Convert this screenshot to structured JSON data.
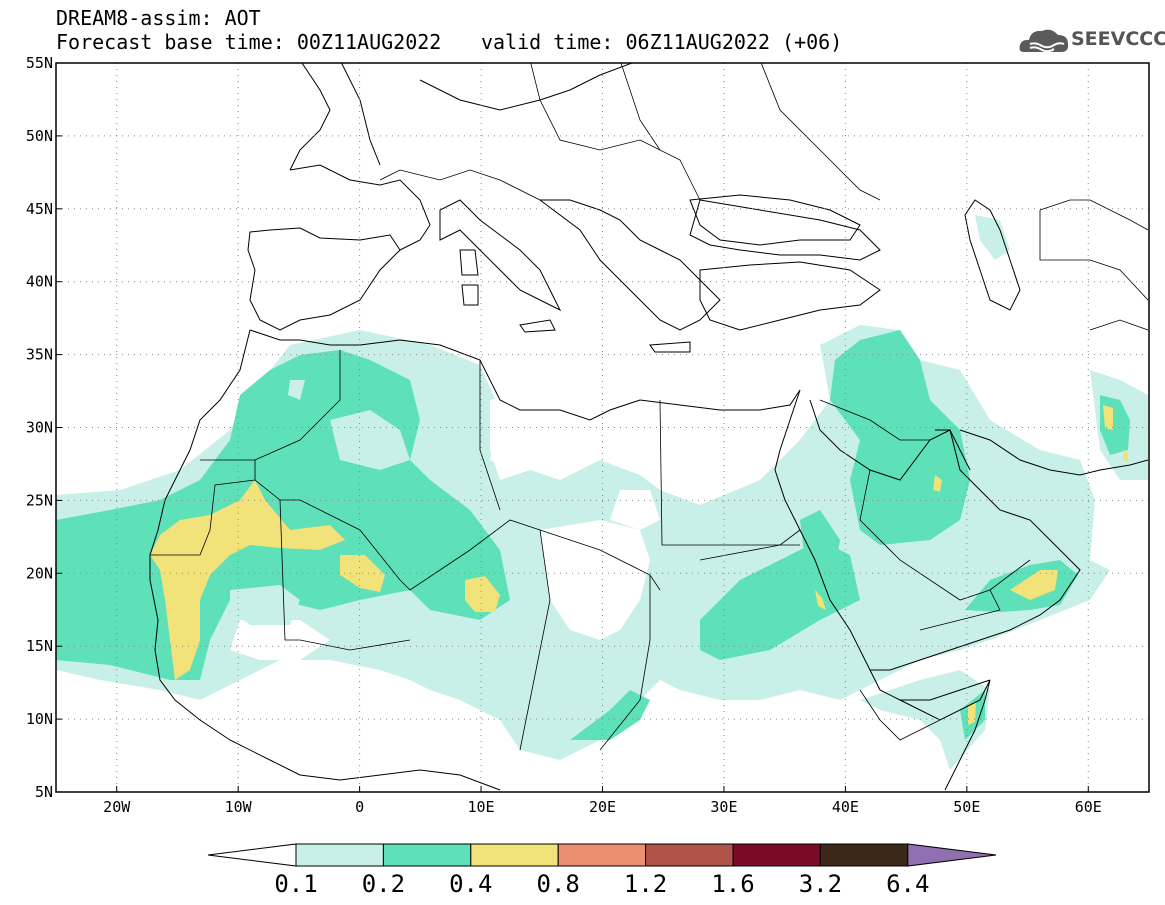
{
  "header": {
    "title_line1": "DREAM8-assim: AOT",
    "title_line2": "Forecast base time: 00Z11AUG2022",
    "valid_time": "valid time: 06Z11AUG2022 (+06)",
    "logo_text": "SEEVCCC"
  },
  "map": {
    "projection": "lat-lon",
    "lon_range": [
      -25,
      65
    ],
    "lat_range": [
      5,
      55
    ],
    "lat_ticks": [
      {
        "value": 55,
        "label": "55N"
      },
      {
        "value": 50,
        "label": "50N"
      },
      {
        "value": 45,
        "label": "45N"
      },
      {
        "value": 40,
        "label": "40N"
      },
      {
        "value": 35,
        "label": "35N"
      },
      {
        "value": 30,
        "label": "30N"
      },
      {
        "value": 25,
        "label": "25N"
      },
      {
        "value": 20,
        "label": "20N"
      },
      {
        "value": 15,
        "label": "15N"
      },
      {
        "value": 10,
        "label": "10N"
      },
      {
        "value": 5,
        "label": "5N"
      }
    ],
    "lon_ticks": [
      {
        "value": -20,
        "label": "20W"
      },
      {
        "value": -10,
        "label": "10W"
      },
      {
        "value": 0,
        "label": "0"
      },
      {
        "value": 10,
        "label": "10E"
      },
      {
        "value": 20,
        "label": "20E"
      },
      {
        "value": 30,
        "label": "30E"
      },
      {
        "value": 40,
        "label": "40E"
      },
      {
        "value": 50,
        "label": "50E"
      },
      {
        "value": 60,
        "label": "60E"
      }
    ],
    "grid": "dotted",
    "field": "AOT"
  },
  "colorbar": {
    "levels": [
      "0.1",
      "0.2",
      "0.4",
      "0.8",
      "1.2",
      "1.6",
      "3.2",
      "6.4"
    ],
    "colors": [
      "#ffffff",
      "#c8f0e8",
      "#5ee0b8",
      "#f2e27a",
      "#ea9070",
      "#b0544a",
      "#7a0a26",
      "#3c2818",
      "#9070b0"
    ]
  },
  "colors": {
    "aot_low": "#c8f0e8",
    "aot_mid": "#5ee0b8",
    "aot_high": "#f2e27a"
  }
}
